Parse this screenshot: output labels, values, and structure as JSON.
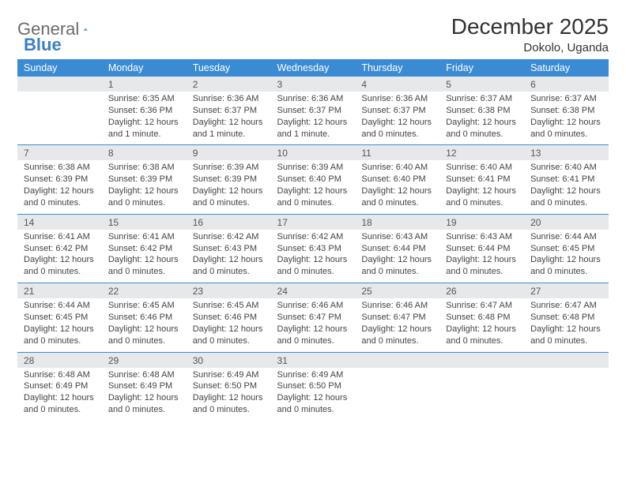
{
  "logo": {
    "text_a": "General",
    "text_b": "Blue",
    "accent_color": "#2f6fb3"
  },
  "header": {
    "month_year": "December 2025",
    "location": "Dokolo, Uganda"
  },
  "colors": {
    "header_bg": "#3b8bd4",
    "header_text": "#ffffff",
    "daynum_bg": "#e6e8ea",
    "rule": "#3b8bd4",
    "body_text": "#444444"
  },
  "day_labels": [
    "Sunday",
    "Monday",
    "Tuesday",
    "Wednesday",
    "Thursday",
    "Friday",
    "Saturday"
  ],
  "weeks": [
    [
      null,
      {
        "n": "1",
        "sr": "Sunrise: 6:35 AM",
        "ss": "Sunset: 6:36 PM",
        "d1": "Daylight: 12 hours",
        "d2": "and 1 minute."
      },
      {
        "n": "2",
        "sr": "Sunrise: 6:36 AM",
        "ss": "Sunset: 6:37 PM",
        "d1": "Daylight: 12 hours",
        "d2": "and 1 minute."
      },
      {
        "n": "3",
        "sr": "Sunrise: 6:36 AM",
        "ss": "Sunset: 6:37 PM",
        "d1": "Daylight: 12 hours",
        "d2": "and 1 minute."
      },
      {
        "n": "4",
        "sr": "Sunrise: 6:36 AM",
        "ss": "Sunset: 6:37 PM",
        "d1": "Daylight: 12 hours",
        "d2": "and 0 minutes."
      },
      {
        "n": "5",
        "sr": "Sunrise: 6:37 AM",
        "ss": "Sunset: 6:38 PM",
        "d1": "Daylight: 12 hours",
        "d2": "and 0 minutes."
      },
      {
        "n": "6",
        "sr": "Sunrise: 6:37 AM",
        "ss": "Sunset: 6:38 PM",
        "d1": "Daylight: 12 hours",
        "d2": "and 0 minutes."
      }
    ],
    [
      {
        "n": "7",
        "sr": "Sunrise: 6:38 AM",
        "ss": "Sunset: 6:39 PM",
        "d1": "Daylight: 12 hours",
        "d2": "and 0 minutes."
      },
      {
        "n": "8",
        "sr": "Sunrise: 6:38 AM",
        "ss": "Sunset: 6:39 PM",
        "d1": "Daylight: 12 hours",
        "d2": "and 0 minutes."
      },
      {
        "n": "9",
        "sr": "Sunrise: 6:39 AM",
        "ss": "Sunset: 6:39 PM",
        "d1": "Daylight: 12 hours",
        "d2": "and 0 minutes."
      },
      {
        "n": "10",
        "sr": "Sunrise: 6:39 AM",
        "ss": "Sunset: 6:40 PM",
        "d1": "Daylight: 12 hours",
        "d2": "and 0 minutes."
      },
      {
        "n": "11",
        "sr": "Sunrise: 6:40 AM",
        "ss": "Sunset: 6:40 PM",
        "d1": "Daylight: 12 hours",
        "d2": "and 0 minutes."
      },
      {
        "n": "12",
        "sr": "Sunrise: 6:40 AM",
        "ss": "Sunset: 6:41 PM",
        "d1": "Daylight: 12 hours",
        "d2": "and 0 minutes."
      },
      {
        "n": "13",
        "sr": "Sunrise: 6:40 AM",
        "ss": "Sunset: 6:41 PM",
        "d1": "Daylight: 12 hours",
        "d2": "and 0 minutes."
      }
    ],
    [
      {
        "n": "14",
        "sr": "Sunrise: 6:41 AM",
        "ss": "Sunset: 6:42 PM",
        "d1": "Daylight: 12 hours",
        "d2": "and 0 minutes."
      },
      {
        "n": "15",
        "sr": "Sunrise: 6:41 AM",
        "ss": "Sunset: 6:42 PM",
        "d1": "Daylight: 12 hours",
        "d2": "and 0 minutes."
      },
      {
        "n": "16",
        "sr": "Sunrise: 6:42 AM",
        "ss": "Sunset: 6:43 PM",
        "d1": "Daylight: 12 hours",
        "d2": "and 0 minutes."
      },
      {
        "n": "17",
        "sr": "Sunrise: 6:42 AM",
        "ss": "Sunset: 6:43 PM",
        "d1": "Daylight: 12 hours",
        "d2": "and 0 minutes."
      },
      {
        "n": "18",
        "sr": "Sunrise: 6:43 AM",
        "ss": "Sunset: 6:44 PM",
        "d1": "Daylight: 12 hours",
        "d2": "and 0 minutes."
      },
      {
        "n": "19",
        "sr": "Sunrise: 6:43 AM",
        "ss": "Sunset: 6:44 PM",
        "d1": "Daylight: 12 hours",
        "d2": "and 0 minutes."
      },
      {
        "n": "20",
        "sr": "Sunrise: 6:44 AM",
        "ss": "Sunset: 6:45 PM",
        "d1": "Daylight: 12 hours",
        "d2": "and 0 minutes."
      }
    ],
    [
      {
        "n": "21",
        "sr": "Sunrise: 6:44 AM",
        "ss": "Sunset: 6:45 PM",
        "d1": "Daylight: 12 hours",
        "d2": "and 0 minutes."
      },
      {
        "n": "22",
        "sr": "Sunrise: 6:45 AM",
        "ss": "Sunset: 6:46 PM",
        "d1": "Daylight: 12 hours",
        "d2": "and 0 minutes."
      },
      {
        "n": "23",
        "sr": "Sunrise: 6:45 AM",
        "ss": "Sunset: 6:46 PM",
        "d1": "Daylight: 12 hours",
        "d2": "and 0 minutes."
      },
      {
        "n": "24",
        "sr": "Sunrise: 6:46 AM",
        "ss": "Sunset: 6:47 PM",
        "d1": "Daylight: 12 hours",
        "d2": "and 0 minutes."
      },
      {
        "n": "25",
        "sr": "Sunrise: 6:46 AM",
        "ss": "Sunset: 6:47 PM",
        "d1": "Daylight: 12 hours",
        "d2": "and 0 minutes."
      },
      {
        "n": "26",
        "sr": "Sunrise: 6:47 AM",
        "ss": "Sunset: 6:48 PM",
        "d1": "Daylight: 12 hours",
        "d2": "and 0 minutes."
      },
      {
        "n": "27",
        "sr": "Sunrise: 6:47 AM",
        "ss": "Sunset: 6:48 PM",
        "d1": "Daylight: 12 hours",
        "d2": "and 0 minutes."
      }
    ],
    [
      {
        "n": "28",
        "sr": "Sunrise: 6:48 AM",
        "ss": "Sunset: 6:49 PM",
        "d1": "Daylight: 12 hours",
        "d2": "and 0 minutes."
      },
      {
        "n": "29",
        "sr": "Sunrise: 6:48 AM",
        "ss": "Sunset: 6:49 PM",
        "d1": "Daylight: 12 hours",
        "d2": "and 0 minutes."
      },
      {
        "n": "30",
        "sr": "Sunrise: 6:49 AM",
        "ss": "Sunset: 6:50 PM",
        "d1": "Daylight: 12 hours",
        "d2": "and 0 minutes."
      },
      {
        "n": "31",
        "sr": "Sunrise: 6:49 AM",
        "ss": "Sunset: 6:50 PM",
        "d1": "Daylight: 12 hours",
        "d2": "and 0 minutes."
      },
      null,
      null,
      null
    ]
  ]
}
